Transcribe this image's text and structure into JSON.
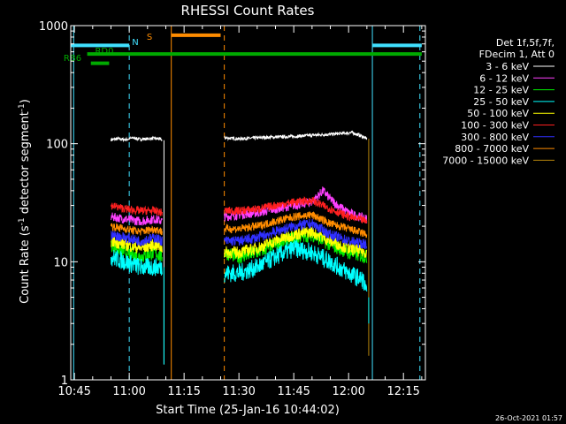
{
  "chart_data": {
    "type": "line",
    "title": "RHESSI Count Rates",
    "xlabel": "Start Time (25-Jan-16 10:44:02)",
    "ylabel_main": "Count Rate (s",
    "ylabel_sup": "-1",
    "ylabel_mid": " detector segment",
    "ylabel_sup2": "-1",
    "ylabel_end": ")",
    "y_scale": "log",
    "ylim": [
      1,
      1000
    ],
    "xlim_minutes": [
      -1,
      96
    ],
    "x_ticks": [
      {
        "m": 0,
        "label": "10:45"
      },
      {
        "m": 15,
        "label": "11:00"
      },
      {
        "m": 30,
        "label": "11:15"
      },
      {
        "m": 45,
        "label": "11:30"
      },
      {
        "m": 60,
        "label": "11:45"
      },
      {
        "m": 75,
        "label": "12:00"
      },
      {
        "m": 90,
        "label": "12:15"
      }
    ],
    "y_ticks": [
      {
        "v": 1,
        "label": "1"
      },
      {
        "v": 10,
        "label": "10"
      },
      {
        "v": 100,
        "label": "100"
      },
      {
        "v": 1000,
        "label": "1000"
      }
    ],
    "legend_header": [
      "Det 1f,5f,7f,",
      "FDecim 1, Att 0"
    ],
    "legend_position": "outside-right",
    "series": [
      {
        "name": "3 - 6 keV",
        "color": "#ffffff",
        "segments": [
          {
            "x": [
              10,
              12,
              14,
              16,
              18,
              20,
              22,
              23.6,
              24
            ],
            "y": [
              108,
              110,
              108,
              112,
              109,
              110,
              111,
              109,
              107
            ]
          },
          {
            "x": [
              41,
              45,
              50,
              55,
              60,
              65,
              70,
              73,
              76,
              78,
              80
            ],
            "y": [
              112,
              110,
              112,
              114,
              115,
              118,
              120,
              122,
              124,
              118,
              110
            ]
          }
        ]
      },
      {
        "name": "6 - 12 keV",
        "color": "#ff40ff",
        "segments": [
          {
            "x": [
              10,
              14,
              18,
              22,
              24
            ],
            "y": [
              24,
              23,
              22,
              23,
              22
            ]
          },
          {
            "x": [
              41,
              45,
              50,
              55,
              60,
              65,
              68,
              70,
              72,
              75,
              78,
              80
            ],
            "y": [
              24,
              25,
              26,
              28,
              30,
              32,
              40,
              34,
              30,
              26,
              24,
              23
            ]
          }
        ]
      },
      {
        "name": "12 - 25 keV",
        "color": "#00ee00",
        "segments": [
          {
            "x": [
              10,
              14,
              18,
              22,
              24
            ],
            "y": [
              14,
              12,
              11,
              12,
              11
            ]
          },
          {
            "x": [
              41,
              45,
              50,
              55,
              60,
              65,
              70,
              75,
              80
            ],
            "y": [
              12,
              11,
              12,
              14,
              16,
              17,
              14,
              12,
              11
            ]
          }
        ]
      },
      {
        "name": "25 - 50 keV",
        "color": "#00ffff",
        "segments": [
          {
            "x": [
              10,
              14,
              18,
              22,
              24
            ],
            "y": [
              11,
              10,
              9,
              9,
              9
            ]
          },
          {
            "x": [
              41,
              45,
              50,
              55,
              60,
              65,
              70,
              75,
              79,
              80
            ],
            "y": [
              8,
              8,
              9,
              11,
              13,
              12,
              10,
              8,
              7,
              5
            ]
          }
        ]
      },
      {
        "name": "50 - 100 keV",
        "color": "#ffff00",
        "segments": [
          {
            "x": [
              10,
              14,
              18,
              22,
              24
            ],
            "y": [
              15,
              14,
              13,
              14,
              13
            ]
          },
          {
            "x": [
              41,
              45,
              50,
              55,
              60,
              65,
              70,
              75,
              80
            ],
            "y": [
              12,
              12,
              13,
              15,
              17,
              18,
              15,
              13,
              12
            ]
          }
        ]
      },
      {
        "name": "100 - 300 keV",
        "color": "#ff2020",
        "segments": [
          {
            "x": [
              10,
              14,
              18,
              22,
              24
            ],
            "y": [
              30,
              28,
              27,
              27,
              26
            ]
          },
          {
            "x": [
              41,
              45,
              50,
              55,
              60,
              65,
              70,
              75,
              80
            ],
            "y": [
              27,
              27,
              28,
              30,
              32,
              33,
              28,
              24,
              22
            ]
          }
        ]
      },
      {
        "name": "300 - 800 keV",
        "color": "#3030ff",
        "segments": [
          {
            "x": [
              10,
              14,
              18,
              22,
              24
            ],
            "y": [
              17,
              16,
              15,
              16,
              15
            ]
          },
          {
            "x": [
              41,
              45,
              50,
              55,
              60,
              65,
              70,
              75,
              80
            ],
            "y": [
              15,
              15,
              16,
              18,
              20,
              21,
              17,
              15,
              14
            ]
          }
        ]
      },
      {
        "name": "800 - 7000 keV",
        "color": "#ff8c00",
        "segments": [
          {
            "x": [
              10,
              14,
              18,
              22,
              24
            ],
            "y": [
              20,
              19,
              18,
              19,
              18
            ]
          },
          {
            "x": [
              41,
              45,
              50,
              55,
              60,
              65,
              70,
              75,
              80
            ],
            "y": [
              19,
              19,
              20,
              22,
              24,
              25,
              21,
              19,
              17
            ]
          }
        ]
      },
      {
        "name": "7000 - 15000 keV",
        "color": "#b8860b",
        "segments": []
      }
    ],
    "bars": [
      {
        "label": "N",
        "color": "#40e0ff",
        "x0": -1,
        "x1": 15,
        "y": 680
      },
      {
        "label": "S",
        "color": "#ff8c00",
        "x0": 26.5,
        "x1": 40,
        "y": 830
      },
      {
        "label": "RD0",
        "color": "#00aa00",
        "x0": 3.5,
        "x1": 95,
        "y": 575
      },
      {
        "label": "RB6",
        "color": "#00aa00",
        "x0": 4.5,
        "x1": 9.5,
        "y": 480
      },
      {
        "label": "",
        "color": "#40e0ff",
        "x0": 81.5,
        "x1": 95,
        "y": 680
      }
    ],
    "vlines": [
      {
        "m": -0.2,
        "color": "#40e0ff",
        "style": "solid"
      },
      {
        "m": 15,
        "color": "#40e0ff",
        "style": "dashed"
      },
      {
        "m": 26.5,
        "color": "#ff8c00",
        "style": "solid"
      },
      {
        "m": 41,
        "color": "#ff8c00",
        "style": "dashed"
      },
      {
        "m": 81.5,
        "color": "#40e0ff",
        "style": "solid"
      },
      {
        "m": 94.5,
        "color": "#40e0ff",
        "style": "dashed"
      }
    ]
  },
  "footer_timestamp": "26-Oct-2021 01:57"
}
